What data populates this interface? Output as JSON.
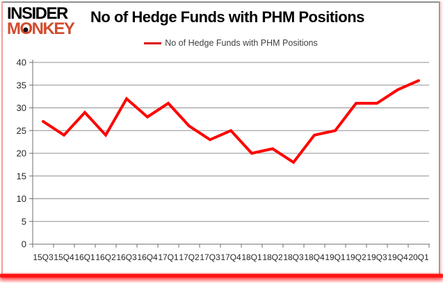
{
  "logo": {
    "line1": "INSIDER",
    "line2_m": "M",
    "line2_o": "O",
    "line2_rest": "NKEY"
  },
  "header": {
    "title": "No of Hedge Funds with PHM Positions"
  },
  "legend": {
    "label": "No of Hedge Funds with PHM Positions"
  },
  "colors": {
    "series": "#ff0000",
    "legend_line": "#dd0000",
    "logo_accent": "#d14b2d",
    "grid": "#8f8f8f",
    "axis": "#6e6e6e",
    "tick_text": "#262626",
    "bottom_bar": "#ff1414"
  },
  "chart_data": {
    "type": "line",
    "title": "No of Hedge Funds with PHM Positions",
    "categories": [
      "15Q3",
      "15Q4",
      "16Q1",
      "16Q2",
      "16Q3",
      "16Q4",
      "17Q1",
      "17Q2",
      "17Q3",
      "17Q4",
      "18Q1",
      "18Q2",
      "18Q3",
      "18Q4",
      "19Q1",
      "19Q2",
      "19Q3",
      "19Q4",
      "20Q1"
    ],
    "series": [
      {
        "name": "No of Hedge Funds with PHM Positions",
        "values": [
          27,
          24,
          29,
          24,
          32,
          28,
          31,
          26,
          23,
          25,
          20,
          21,
          18,
          24,
          25,
          31,
          31,
          34,
          36
        ]
      }
    ],
    "ylim": [
      0,
      40
    ],
    "yticks": [
      0,
      5,
      10,
      15,
      20,
      25,
      30,
      35,
      40
    ],
    "grid": true,
    "legend_position": "top"
  }
}
